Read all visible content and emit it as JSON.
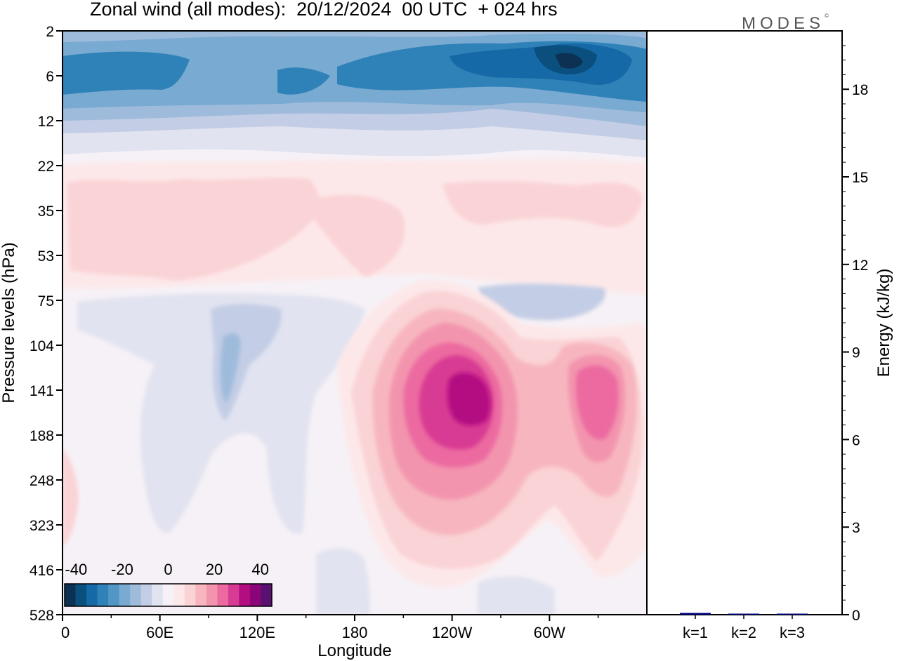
{
  "title": "Zonal wind (all modes):  20/12/2024  00 UTC  + 024 hrs",
  "logo": {
    "text": "MODES",
    "mark": "©"
  },
  "chart_data": [
    {
      "type": "heatmap",
      "variable": "Zonal wind",
      "xlabel": "Longitude",
      "ylabel": "Pressure levels (hPa)",
      "x_ticks": [
        "0",
        "60E",
        "120E",
        "180",
        "120W",
        "60W"
      ],
      "x_tick_degrees": [
        0,
        60,
        120,
        180,
        240,
        300
      ],
      "xlim": [
        0,
        360
      ],
      "y_ticks": [
        "2",
        "6",
        "12",
        "22",
        "35",
        "53",
        "75",
        "104",
        "141",
        "188",
        "248",
        "323",
        "416",
        "528"
      ],
      "ylim": [
        "2",
        "528"
      ],
      "colorbar": {
        "tick_labels": [
          "-40",
          "-20",
          "0",
          "20",
          "40"
        ],
        "range": [
          -45,
          45
        ],
        "step": 5,
        "colors": [
          "#0c3153",
          "#0a4f7e",
          "#1569a6",
          "#2f82b8",
          "#5296c5",
          "#78aad2",
          "#9fbbdb",
          "#c3cde5",
          "#e1e3f0",
          "#f6f1f6",
          "#fde8e9",
          "#fad3d6",
          "#f7b6bf",
          "#f394ae",
          "#ec6aa0",
          "#d83b93",
          "#b40d82",
          "#8b0478",
          "#5a1070"
        ]
      },
      "features": [
        {
          "label": "westward upper-stratosphere band",
          "levels": "2-22",
          "lon": "0-360",
          "value_min": -45
        },
        {
          "label": "eastward jet core",
          "levels": "104-188",
          "lon": "~230",
          "value_max": 42
        },
        {
          "label": "secondary eastward core",
          "levels": "104-188",
          "lon": "~320",
          "value_max": 27
        },
        {
          "label": "eastward stratospheric layer",
          "levels": "22-53",
          "lon": "0-360",
          "value_max": 12
        },
        {
          "label": "weak westward tropospheric patches",
          "levels": "75-528",
          "lon": "45-190",
          "value_min": -12
        }
      ]
    },
    {
      "type": "bar",
      "categories": [
        "k=1",
        "k=2",
        "k=3"
      ],
      "values": [
        0.06,
        0.01,
        0.005
      ],
      "ylabel": "Energy (kJ/kg)",
      "ylim": [
        0,
        20
      ],
      "y_ticks": [
        "0",
        "3",
        "6",
        "9",
        "12",
        "15",
        "18"
      ],
      "bar_color": "#000080"
    }
  ]
}
